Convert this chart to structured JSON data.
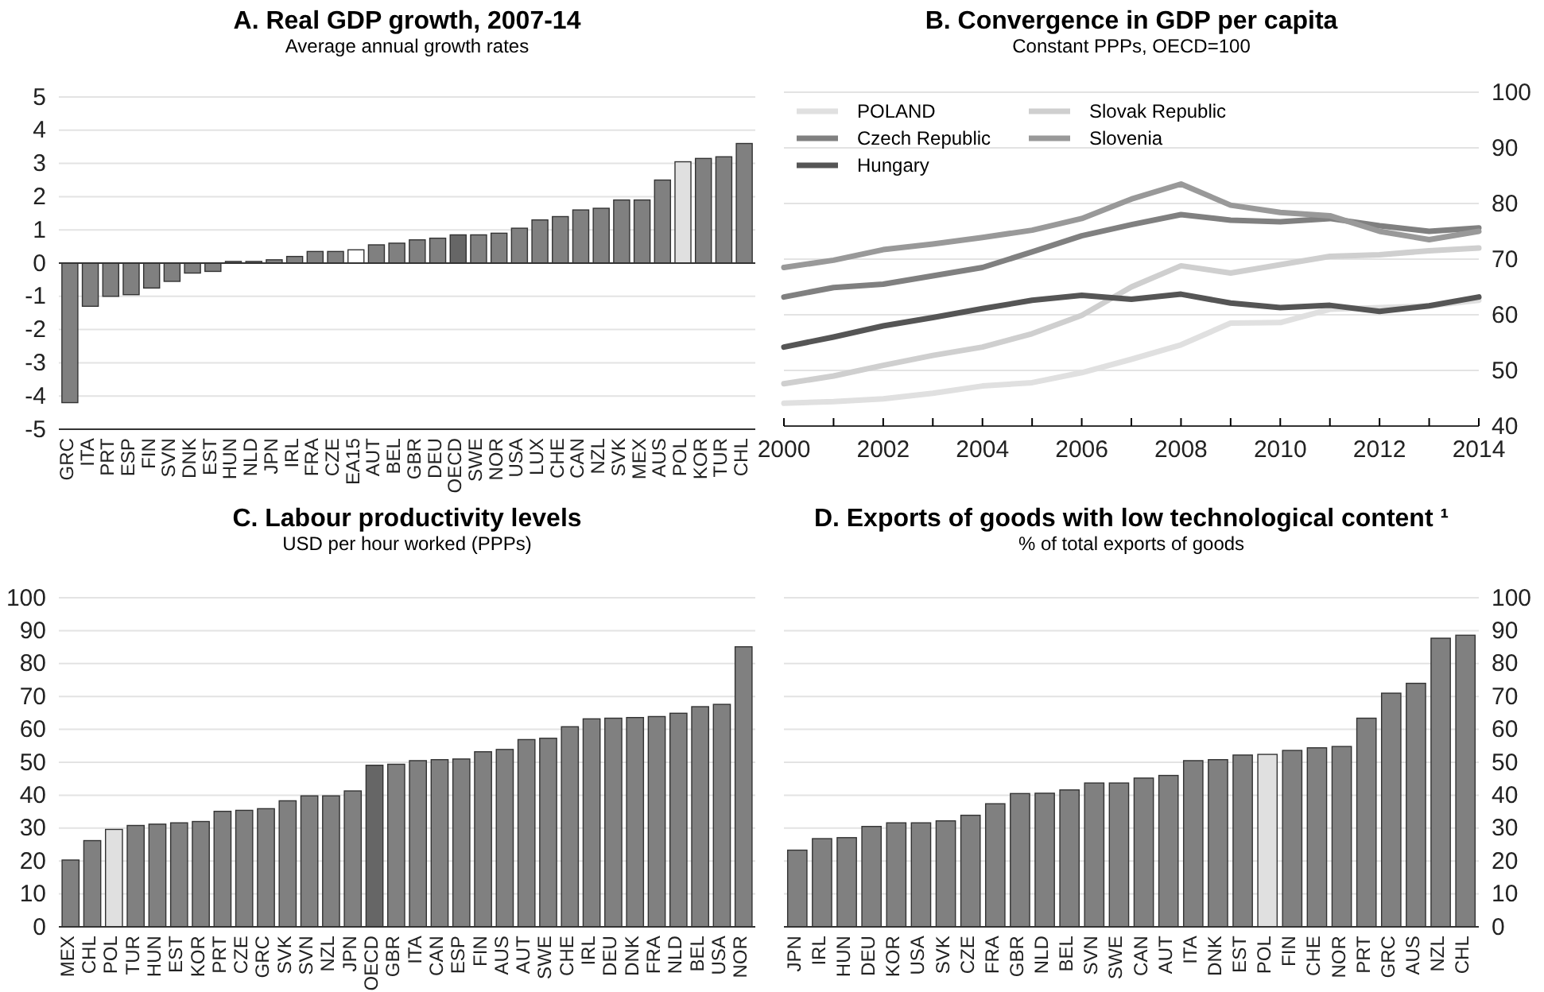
{
  "chart_data": [
    {
      "type": "bar",
      "title": "A. Real GDP growth, 2007-14",
      "subtitle": "Average annual growth rates",
      "categories": [
        "GRC",
        "ITA",
        "PRT",
        "ESP",
        "FIN",
        "SVN",
        "DNK",
        "EST",
        "HUN",
        "NLD",
        "JPN",
        "IRL",
        "FRA",
        "CZE",
        "EA15",
        "AUT",
        "BEL",
        "GBR",
        "DEU",
        "OECD",
        "SWE",
        "NOR",
        "USA",
        "LUX",
        "CHE",
        "CAN",
        "NZL",
        "SVK",
        "MEX",
        "AUS",
        "POL",
        "KOR",
        "TUR",
        "CHL"
      ],
      "values": [
        -4.2,
        -1.3,
        -1.0,
        -0.95,
        -0.75,
        -0.55,
        -0.3,
        -0.25,
        0.05,
        0.05,
        0.1,
        0.2,
        0.35,
        0.35,
        0.4,
        0.55,
        0.6,
        0.7,
        0.75,
        0.85,
        0.85,
        0.9,
        1.05,
        1.3,
        1.4,
        1.6,
        1.65,
        1.9,
        1.9,
        2.5,
        3.05,
        3.15,
        3.2,
        3.6
      ],
      "colors": [
        "#808080",
        "#808080",
        "#808080",
        "#808080",
        "#808080",
        "#808080",
        "#808080",
        "#808080",
        "#808080",
        "#808080",
        "#808080",
        "#808080",
        "#808080",
        "#808080",
        "#ffffff",
        "#808080",
        "#808080",
        "#808080",
        "#808080",
        "#666666",
        "#808080",
        "#808080",
        "#808080",
        "#808080",
        "#808080",
        "#808080",
        "#808080",
        "#808080",
        "#808080",
        "#808080",
        "#e0e0e0",
        "#808080",
        "#808080",
        "#808080"
      ],
      "ylim": [
        -5,
        5
      ],
      "yticks": [
        -5,
        -4,
        -3,
        -2,
        -1,
        0,
        1,
        2,
        3,
        4,
        5
      ],
      "grid": "y"
    },
    {
      "type": "line",
      "title": "B. Convergence in GDP per capita",
      "subtitle": "Constant PPPs, OECD=100",
      "x": [
        2000,
        2001,
        2002,
        2003,
        2004,
        2005,
        2006,
        2007,
        2008,
        2009,
        2010,
        2011,
        2012,
        2013,
        2014
      ],
      "series": [
        {
          "name": "POLAND",
          "color": "#e0e0e0",
          "axis": "y2",
          "values": [
            44.1,
            44.4,
            44.9,
            45.9,
            47.2,
            47.8,
            49.6,
            52.0,
            54.6,
            58.5,
            58.6,
            61.0,
            61.3,
            61.6,
            62.6
          ]
        },
        {
          "name": "Slovak Republic",
          "color": "#cfcfcf",
          "axis": "y2",
          "values": [
            47.6,
            49.0,
            50.9,
            52.7,
            54.2,
            56.6,
            59.9,
            65.0,
            68.8,
            67.5,
            69.0,
            70.5,
            70.8,
            71.5,
            72.0
          ]
        },
        {
          "name": "Czech Republic",
          "color": "#808080",
          "axis": "y2",
          "values": [
            63.2,
            64.9,
            65.5,
            67.0,
            68.5,
            71.3,
            74.2,
            76.2,
            78.0,
            77.0,
            76.7,
            77.3,
            76.0,
            75.0,
            75.6
          ]
        },
        {
          "name": "Slovenia",
          "color": "#999999",
          "axis": "y2",
          "values": [
            68.5,
            69.8,
            71.7,
            72.7,
            73.9,
            75.2,
            77.3,
            80.8,
            83.5,
            79.7,
            78.4,
            77.8,
            75.0,
            73.5,
            75.0
          ]
        },
        {
          "name": "Hungary",
          "color": "#555555",
          "axis": "y2",
          "values": [
            54.2,
            56.0,
            58.0,
            59.5,
            61.1,
            62.6,
            63.5,
            62.8,
            63.7,
            62.1,
            61.3,
            61.7,
            60.6,
            61.6,
            63.2
          ]
        }
      ],
      "xlim": [
        2000,
        2014
      ],
      "xticks": [
        2000,
        {
          "value": 2001,
          "label": null
        },
        2002,
        {
          "value": 2003,
          "label": null
        },
        2004,
        {
          "value": 2005,
          "label": null
        },
        2006,
        {
          "value": 2007,
          "label": null
        },
        2008,
        {
          "value": 2009,
          "label": null
        },
        2010,
        {
          "value": 2011,
          "label": null
        },
        2012,
        {
          "value": 2013,
          "label": null
        },
        2014
      ],
      "y2lim": [
        40,
        100
      ],
      "y2ticks": [
        40,
        50,
        60,
        70,
        80,
        90,
        100
      ],
      "grid": "y",
      "legend": "top left"
    },
    {
      "type": "bar",
      "title": "C. Labour productivity levels",
      "subtitle": "USD per hour worked (PPPs)",
      "categories": [
        "MEX",
        "CHL",
        "POL",
        "TUR",
        "HUN",
        "EST",
        "KOR",
        "PRT",
        "CZE",
        "GRC",
        "SVK",
        "SVN",
        "NZL",
        "JPN",
        "OECD",
        "GBR",
        "ITA",
        "CAN",
        "ESP",
        "FIN",
        "AUS",
        "AUT",
        "SWE",
        "CHE",
        "IRL",
        "DEU",
        "DNK",
        "FRA",
        "NLD",
        "BEL",
        "USA",
        "NOR"
      ],
      "values": [
        20.3,
        26.2,
        29.6,
        30.8,
        31.2,
        31.6,
        32.0,
        35.1,
        35.4,
        35.9,
        38.3,
        39.8,
        39.8,
        41.3,
        49.1,
        49.4,
        50.5,
        50.8,
        51.0,
        53.2,
        53.9,
        56.9,
        57.3,
        60.8,
        63.2,
        63.4,
        63.6,
        63.9,
        64.9,
        66.9,
        67.6,
        85.1
      ],
      "colors": [
        "#808080",
        "#808080",
        "#e0e0e0",
        "#808080",
        "#808080",
        "#808080",
        "#808080",
        "#808080",
        "#808080",
        "#808080",
        "#808080",
        "#808080",
        "#808080",
        "#808080",
        "#666666",
        "#808080",
        "#808080",
        "#808080",
        "#808080",
        "#808080",
        "#808080",
        "#808080",
        "#808080",
        "#808080",
        "#808080",
        "#808080",
        "#808080",
        "#808080",
        "#808080",
        "#808080",
        "#808080",
        "#808080"
      ],
      "ylim": [
        0,
        100
      ],
      "yticks": [
        0,
        10,
        20,
        30,
        40,
        50,
        60,
        70,
        80,
        90,
        100
      ],
      "grid": "y"
    },
    {
      "type": "bar",
      "title": "D. Exports of goods with low technological content ¹",
      "subtitle": "% of total exports of goods",
      "categories": [
        "JPN",
        "IRL",
        "HUN",
        "DEU",
        "KOR",
        "USA",
        "SVK",
        "CZE",
        "FRA",
        "GBR",
        "NLD",
        "BEL",
        "SVN",
        "SWE",
        "CAN",
        "AUT",
        "ITA",
        "DNK",
        "EST",
        "POL",
        "FIN",
        "CHE",
        "NOR",
        "PRT",
        "GRC",
        "AUS",
        "NZL",
        "CHL"
      ],
      "series": [
        {
          "axis": "y2",
          "colors": [
            "#808080",
            "#808080",
            "#808080",
            "#808080",
            "#808080",
            "#808080",
            "#808080",
            "#808080",
            "#808080",
            "#808080",
            "#808080",
            "#808080",
            "#808080",
            "#808080",
            "#808080",
            "#808080",
            "#808080",
            "#808080",
            "#808080",
            "#e0e0e0",
            "#808080",
            "#808080",
            "#808080",
            "#808080",
            "#808080",
            "#808080",
            "#808080",
            "#808080"
          ],
          "values": [
            23.3,
            26.8,
            27.1,
            30.5,
            31.6,
            31.6,
            32.2,
            33.9,
            37.4,
            40.5,
            40.6,
            41.6,
            43.7,
            43.7,
            45.2,
            46.0,
            50.5,
            50.8,
            52.2,
            52.4,
            53.6,
            54.4,
            54.8,
            63.4,
            71.0,
            74.0,
            87.7,
            88.6
          ]
        }
      ],
      "y2lim": [
        0,
        100
      ],
      "y2ticks": [
        0,
        10,
        20,
        30,
        40,
        50,
        60,
        70,
        80,
        90,
        100
      ],
      "grid": "y"
    }
  ]
}
